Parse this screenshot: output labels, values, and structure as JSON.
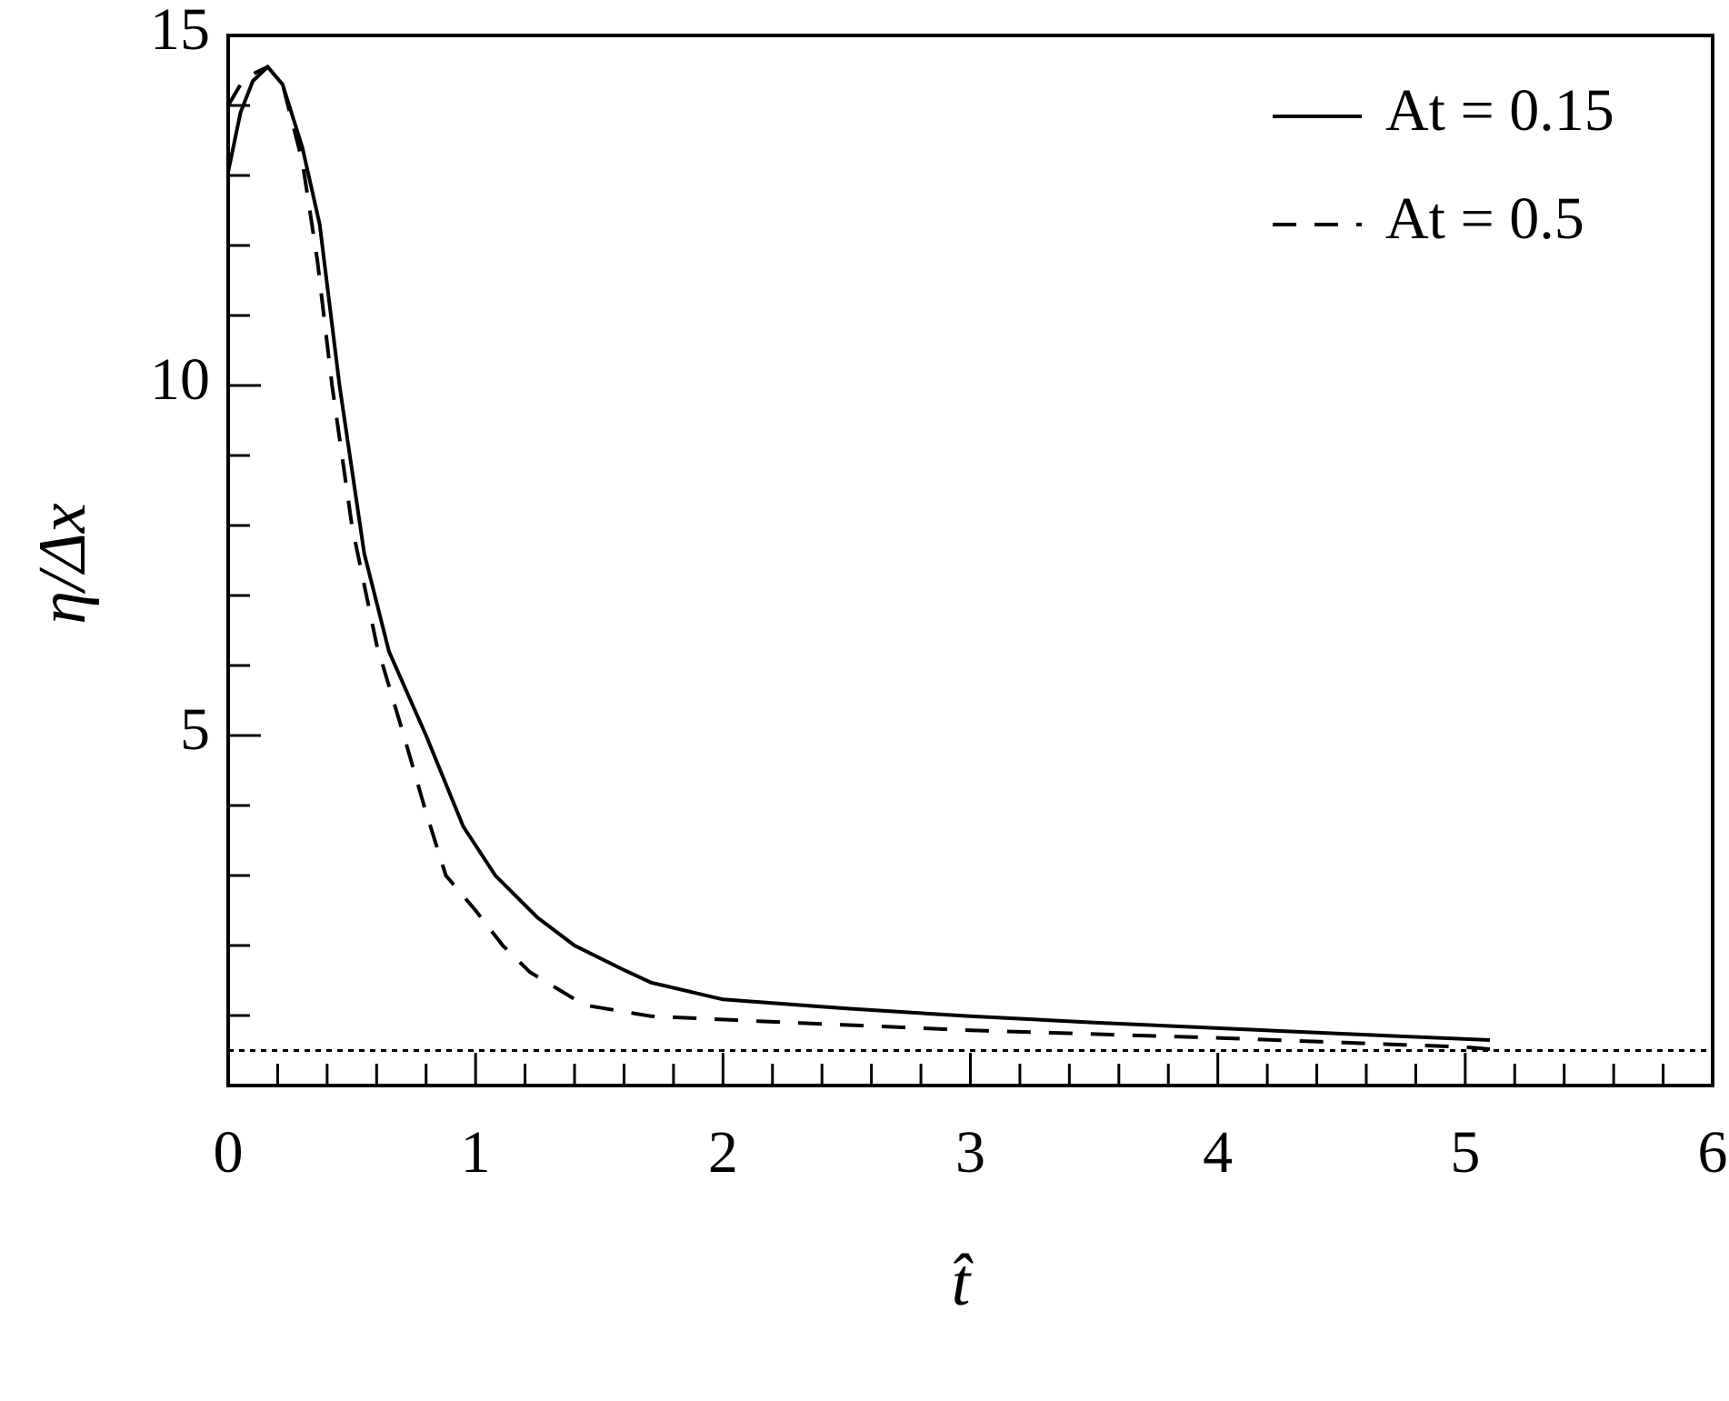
{
  "chart_data": {
    "type": "line",
    "x_label": "t̂",
    "y_label": "η/Δx",
    "xlim": [
      0,
      6
    ],
    "ylim": [
      0,
      15
    ],
    "xticks": [
      0,
      1,
      2,
      3,
      4,
      5,
      6
    ],
    "yticks": [
      5,
      10,
      15
    ],
    "xminorticks": [
      0.2,
      0.4,
      0.6,
      0.8,
      1.2,
      1.4,
      1.6,
      1.8,
      2.2,
      2.4,
      2.6,
      2.8,
      3.2,
      3.4,
      3.6,
      3.8,
      4.2,
      4.4,
      4.6,
      4.8,
      5.2,
      5.4,
      5.6,
      5.8
    ],
    "yminorticks": [
      1,
      2,
      3,
      4,
      6,
      7,
      8,
      9,
      11,
      12,
      13,
      14
    ],
    "reference_line": {
      "y": 0.5,
      "style": "dotted",
      "color": "#000000"
    },
    "legend": "upper right",
    "series": [
      {
        "name": "At = 0.15",
        "color": "#000000",
        "style": "solid",
        "x": [
          0,
          0.05,
          0.1,
          0.16,
          0.22,
          0.3,
          0.37,
          0.45,
          0.55,
          0.65,
          0.8,
          0.95,
          1.08,
          1.25,
          1.4,
          1.6,
          1.71,
          2.0,
          2.5,
          3.0,
          3.5,
          4.0,
          4.5,
          5.1
        ],
        "values": [
          13.05,
          13.9,
          14.35,
          14.55,
          14.3,
          13.4,
          12.3,
          10.0,
          7.6,
          6.2,
          5.0,
          3.7,
          3.0,
          2.4,
          2.0,
          1.65,
          1.47,
          1.23,
          1.1,
          0.99,
          0.9,
          0.82,
          0.74,
          0.65
        ]
      },
      {
        "name": "At = 0.5",
        "color": "#000000",
        "style": "dashed",
        "x": [
          0,
          0.05,
          0.1,
          0.16,
          0.22,
          0.3,
          0.36,
          0.42,
          0.5,
          0.6,
          0.71,
          0.8,
          0.88,
          1.0,
          1.11,
          1.22,
          1.44,
          1.71,
          2.2,
          3.0,
          4.0,
          5.0,
          5.1
        ],
        "values": [
          14.0,
          14.3,
          14.45,
          14.55,
          14.3,
          13.2,
          11.8,
          10.0,
          8.0,
          6.3,
          5.0,
          3.9,
          3.0,
          2.5,
          2.0,
          1.62,
          1.15,
          0.99,
          0.91,
          0.79,
          0.68,
          0.55,
          0.52
        ]
      }
    ]
  }
}
